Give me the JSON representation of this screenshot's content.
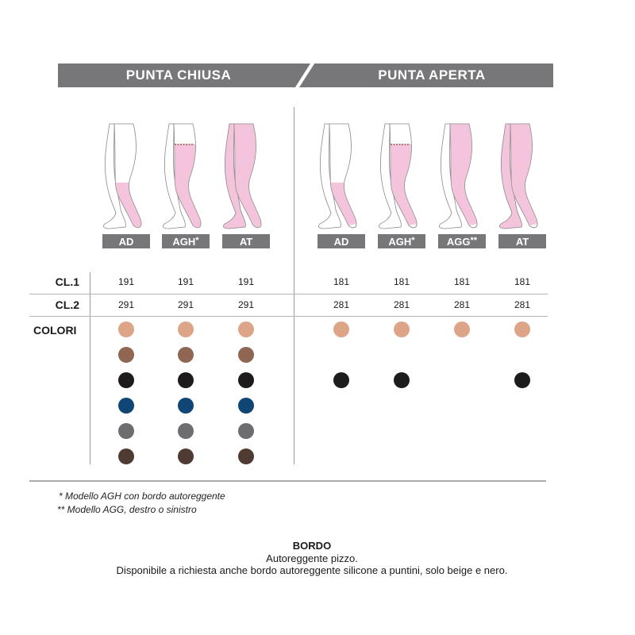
{
  "header": {
    "left": "PUNTA CHIUSA",
    "right": "PUNTA APERTA"
  },
  "columns": [
    {
      "group": "closed",
      "model": "AD",
      "mark": "",
      "type": "knee",
      "cl1": "191",
      "cl2": "291",
      "colors": [
        "beige",
        "brown",
        "black",
        "navy",
        "grey",
        "dark-brown"
      ]
    },
    {
      "group": "closed",
      "model": "AGH",
      "mark": "*",
      "type": "thigh",
      "cl1": "191",
      "cl2": "291",
      "colors": [
        "beige",
        "brown",
        "black",
        "navy",
        "grey",
        "dark-brown"
      ]
    },
    {
      "group": "closed",
      "model": "AT",
      "mark": "",
      "type": "tights",
      "cl1": "191",
      "cl2": "291",
      "colors": [
        "beige",
        "brown",
        "black",
        "navy",
        "grey",
        "dark-brown"
      ]
    },
    {
      "group": "open",
      "model": "AD",
      "mark": "",
      "type": "knee",
      "cl1": "181",
      "cl2": "281",
      "colors": [
        "beige",
        null,
        "black",
        null,
        null,
        null
      ]
    },
    {
      "group": "open",
      "model": "AGH",
      "mark": "*",
      "type": "thigh",
      "cl1": "181",
      "cl2": "281",
      "colors": [
        "beige",
        null,
        "black",
        null,
        null,
        null
      ]
    },
    {
      "group": "open",
      "model": "AGG",
      "mark": "**",
      "type": "single",
      "cl1": "181",
      "cl2": "281",
      "colors": [
        "beige",
        null,
        null,
        null,
        null,
        null
      ]
    },
    {
      "group": "open",
      "model": "AT",
      "mark": "",
      "type": "tights",
      "cl1": "181",
      "cl2": "281",
      "colors": [
        "beige",
        null,
        "black",
        null,
        null,
        null
      ]
    }
  ],
  "rows": {
    "cl1": "CL.1",
    "cl2": "CL.2",
    "colors": "COLORI"
  },
  "palette": {
    "beige": "#dea487",
    "brown": "#8e6652",
    "black": "#1d1b1c",
    "navy": "#0f4675",
    "grey": "#6d6d6f",
    "dark-brown": "#4f3b32",
    "stocking": "#f4c4dc",
    "header": "#77777a"
  },
  "notes": [
    "* Modello AGH con bordo autoreggente",
    "** Modello AGG, destro o sinistro"
  ],
  "bordo": {
    "title": "BORDO",
    "line1": "Autoreggente pizzo.",
    "line2": "Disponibile a richiesta anche bordo autoreggente silicone a puntini, solo beige e nero."
  }
}
